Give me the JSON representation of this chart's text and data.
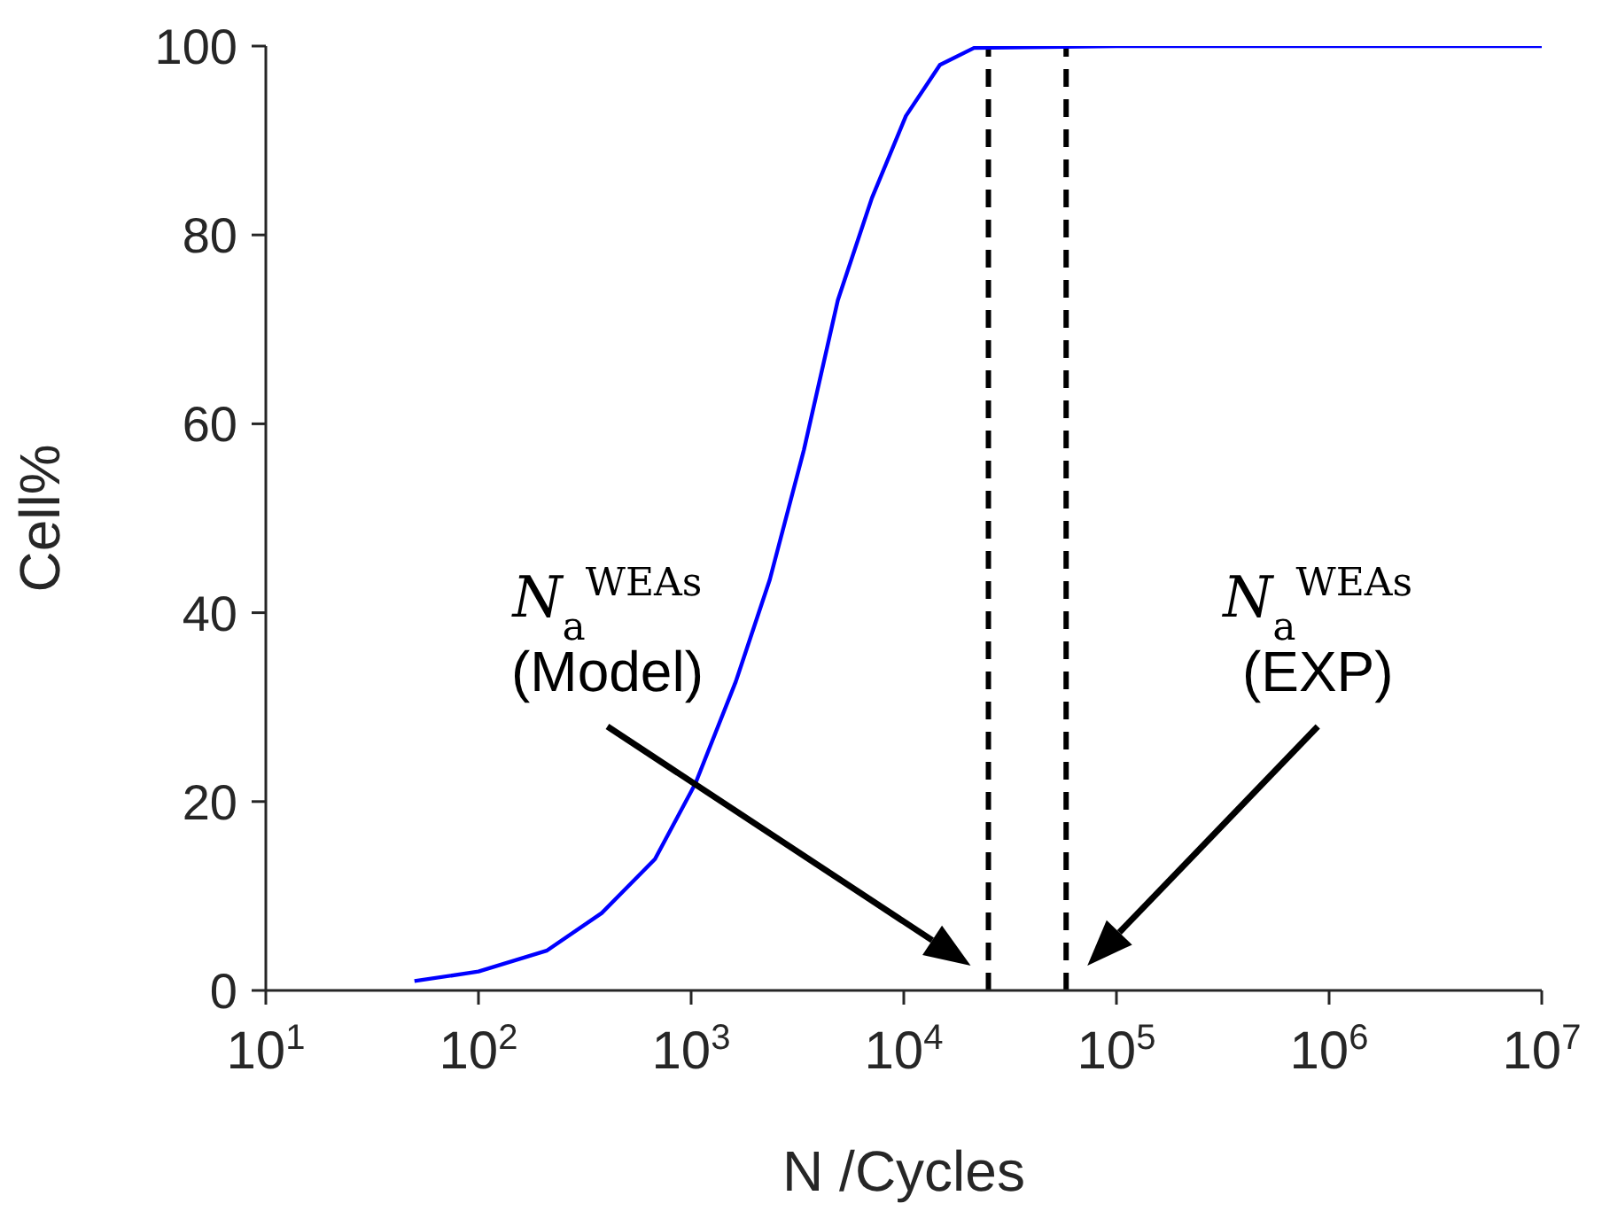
{
  "chart_data": {
    "type": "line",
    "xlabel": "N /Cycles",
    "ylabel": "Cell%",
    "log": "x",
    "x": [
      50,
      100,
      209,
      380,
      676,
      1047,
      1622,
      2344,
      3388,
      4898,
      7079,
      10233,
      14791,
      21380,
      100000,
      1000000,
      10000000
    ],
    "series": [
      {
        "color": "#0000ff",
        "values": [
          1,
          2,
          4.2,
          8.2,
          13.9,
          21.9,
          32.7,
          43.5,
          57.2,
          73.1,
          83.9,
          92.6,
          98,
          99.8,
          100,
          100,
          100
        ]
      }
    ],
    "xlim": [
      10,
      10000000
    ],
    "ylim": [
      0,
      100
    ],
    "xticks": [
      {
        "value": 10,
        "label": "10$^{1}$"
      },
      {
        "value": 100,
        "label": "10$^{2}$"
      },
      {
        "value": 1000,
        "label": "10$^{3}$"
      },
      {
        "value": 10000,
        "label": "10$^{4}$"
      },
      {
        "value": 100000,
        "label": "10$^{5}$"
      },
      {
        "value": 1000000,
        "label": "10$^{6}$"
      },
      {
        "value": 10000000,
        "label": "10$^{7}$"
      }
    ],
    "yticks": [
      0,
      20,
      40,
      60,
      80,
      100
    ],
    "ref_lines": [
      {
        "axis": "x",
        "value": 25000,
        "color": "#000000",
        "line_style": "dashed"
      },
      {
        "axis": "x",
        "value": 58000,
        "color": "#000000",
        "line_style": "dashed"
      }
    ],
    "annotations": [
      "N$_{a}$$^{WEAs}$\n(Model)",
      "N$_{a}$$^{WEAs}$\n(EXP)"
    ],
    "marker": "none",
    "line_style": "solid"
  }
}
